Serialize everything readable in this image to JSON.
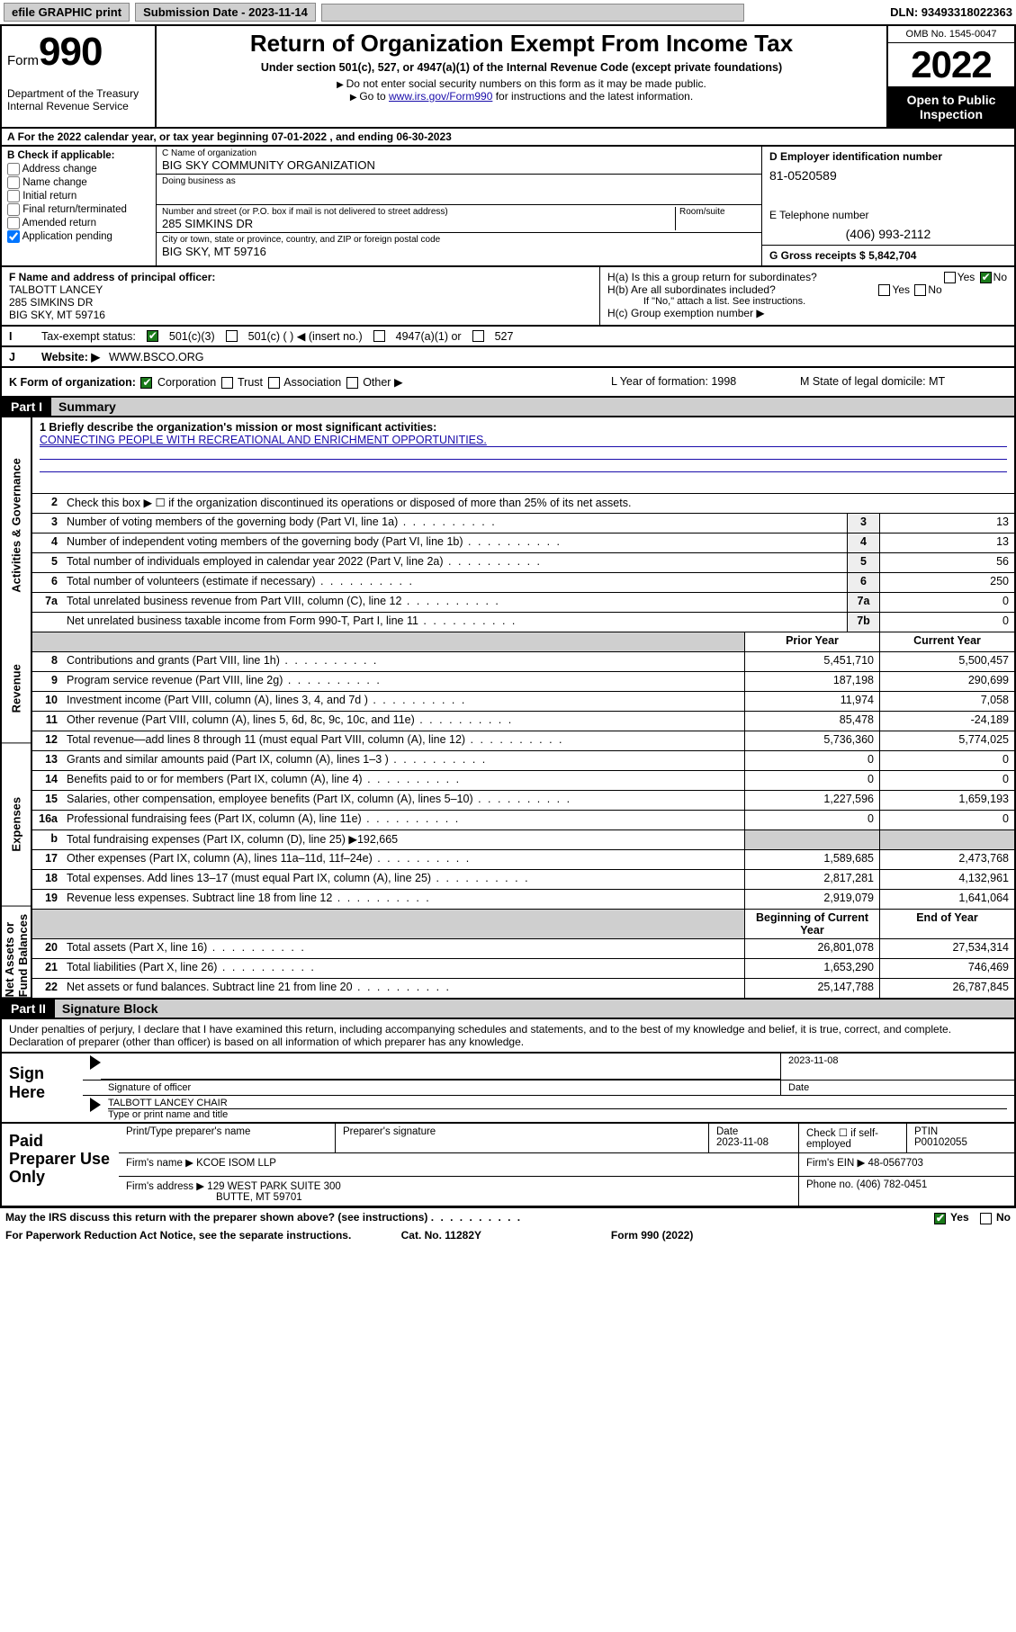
{
  "topbar": {
    "efile": "efile GRAPHIC print",
    "sub_label": "Submission Date - 2023-11-14",
    "dln": "DLN: 93493318022363"
  },
  "head": {
    "form_word": "Form",
    "form_num": "990",
    "title": "Return of Organization Exempt From Income Tax",
    "sub": "Under section 501(c), 527, or 4947(a)(1) of the Internal Revenue Code (except private foundations)",
    "note1": "Do not enter social security numbers on this form as it may be made public.",
    "note2_pre": "Go to ",
    "note2_link": "www.irs.gov/Form990",
    "note2_post": " for instructions and the latest information.",
    "dept": "Department of the Treasury\nInternal Revenue Service",
    "omb": "OMB No. 1545-0047",
    "year": "2022",
    "open": "Open to Public Inspection"
  },
  "period": "For the 2022 calendar year, or tax year beginning 07-01-2022   , and ending 06-30-2023",
  "B": {
    "hdr": "B Check if applicable:",
    "items": [
      "Address change",
      "Name change",
      "Initial return",
      "Final return/terminated",
      "Amended return",
      "Application pending"
    ]
  },
  "C": {
    "name_lab": "C Name of organization",
    "name": "BIG SKY COMMUNITY ORGANIZATION",
    "dba_lab": "Doing business as",
    "addr_lab": "Number and street (or P.O. box if mail is not delivered to street address)",
    "room_lab": "Room/suite",
    "addr": "285 SIMKINS DR",
    "city_lab": "City or town, state or province, country, and ZIP or foreign postal code",
    "city": "BIG SKY, MT  59716"
  },
  "D": {
    "lab": "D Employer identification number",
    "val": "81-0520589"
  },
  "E": {
    "lab": "E Telephone number",
    "val": "(406) 993-2112"
  },
  "G": {
    "lab": "G Gross receipts $",
    "val": "5,842,704"
  },
  "F": {
    "lab": "F  Name and address of principal officer:",
    "name": "TALBOTT LANCEY",
    "addr1": "285 SIMKINS DR",
    "addr2": "BIG SKY, MT  59716"
  },
  "H": {
    "a": "H(a)  Is this a group return for subordinates?",
    "b": "H(b)  Are all subordinates included?",
    "b_note": "If \"No,\" attach a list. See instructions.",
    "c": "H(c)  Group exemption number ▶"
  },
  "I": {
    "lab": "Tax-exempt status:",
    "opts": [
      "501(c)(3)",
      "501(c) (   ) ◀ (insert no.)",
      "4947(a)(1) or",
      "527"
    ]
  },
  "J": {
    "lab": "Website: ▶",
    "val": "WWW.BSCO.ORG"
  },
  "K": {
    "lab": "K Form of organization:",
    "opts": [
      "Corporation",
      "Trust",
      "Association",
      "Other ▶"
    ],
    "L": "L Year of formation: 1998",
    "M": "M State of legal domicile: MT"
  },
  "part1": {
    "hdr": "Part I",
    "title": "Summary"
  },
  "mission": {
    "q": "1     Briefly describe the organization's mission or most significant activities:",
    "a": "CONNECTING PEOPLE WITH RECREATIONAL AND ENRICHMENT OPPORTUNITIES."
  },
  "line2": "Check this box ▶ ☐  if the organization discontinued its operations or disposed of more than 25% of its net assets.",
  "govRows": [
    {
      "n": "3",
      "t": "Number of voting members of the governing body (Part VI, line 1a)",
      "b": "3",
      "v": "13"
    },
    {
      "n": "4",
      "t": "Number of independent voting members of the governing body (Part VI, line 1b)",
      "b": "4",
      "v": "13"
    },
    {
      "n": "5",
      "t": "Total number of individuals employed in calendar year 2022 (Part V, line 2a)",
      "b": "5",
      "v": "56"
    },
    {
      "n": "6",
      "t": "Total number of volunteers (estimate if necessary)",
      "b": "6",
      "v": "250"
    },
    {
      "n": "7a",
      "t": "Total unrelated business revenue from Part VIII, column (C), line 12",
      "b": "7a",
      "v": "0"
    },
    {
      "n": "",
      "t": "Net unrelated business taxable income from Form 990-T, Part I, line 11",
      "b": "7b",
      "v": "0"
    }
  ],
  "pyHdr": {
    "p": "Prior Year",
    "c": "Current Year"
  },
  "revRows": [
    {
      "n": "8",
      "t": "Contributions and grants (Part VIII, line 1h)",
      "p": "5,451,710",
      "c": "5,500,457"
    },
    {
      "n": "9",
      "t": "Program service revenue (Part VIII, line 2g)",
      "p": "187,198",
      "c": "290,699"
    },
    {
      "n": "10",
      "t": "Investment income (Part VIII, column (A), lines 3, 4, and 7d )",
      "p": "11,974",
      "c": "7,058"
    },
    {
      "n": "11",
      "t": "Other revenue (Part VIII, column (A), lines 5, 6d, 8c, 9c, 10c, and 11e)",
      "p": "85,478",
      "c": "-24,189"
    },
    {
      "n": "12",
      "t": "Total revenue—add lines 8 through 11 (must equal Part VIII, column (A), line 12)",
      "p": "5,736,360",
      "c": "5,774,025"
    }
  ],
  "expRows": [
    {
      "n": "13",
      "t": "Grants and similar amounts paid (Part IX, column (A), lines 1–3 )",
      "p": "0",
      "c": "0"
    },
    {
      "n": "14",
      "t": "Benefits paid to or for members (Part IX, column (A), line 4)",
      "p": "0",
      "c": "0"
    },
    {
      "n": "15",
      "t": "Salaries, other compensation, employee benefits (Part IX, column (A), lines 5–10)",
      "p": "1,227,596",
      "c": "1,659,193"
    },
    {
      "n": "16a",
      "t": "Professional fundraising fees (Part IX, column (A), line 11e)",
      "p": "0",
      "c": "0"
    },
    {
      "n": "b",
      "t": "Total fundraising expenses (Part IX, column (D), line 25) ▶192,665",
      "shade": true
    },
    {
      "n": "17",
      "t": "Other expenses (Part IX, column (A), lines 11a–11d, 11f–24e)",
      "p": "1,589,685",
      "c": "2,473,768"
    },
    {
      "n": "18",
      "t": "Total expenses. Add lines 13–17 (must equal Part IX, column (A), line 25)",
      "p": "2,817,281",
      "c": "4,132,961"
    },
    {
      "n": "19",
      "t": "Revenue less expenses. Subtract line 18 from line 12",
      "p": "2,919,079",
      "c": "1,641,064"
    }
  ],
  "naHdr": {
    "p": "Beginning of Current Year",
    "c": "End of Year"
  },
  "naRows": [
    {
      "n": "20",
      "t": "Total assets (Part X, line 16)",
      "p": "26,801,078",
      "c": "27,534,314"
    },
    {
      "n": "21",
      "t": "Total liabilities (Part X, line 26)",
      "p": "1,653,290",
      "c": "746,469"
    },
    {
      "n": "22",
      "t": "Net assets or fund balances. Subtract line 21 from line 20",
      "p": "25,147,788",
      "c": "26,787,845"
    }
  ],
  "sideTabs": [
    "Activities & Governance",
    "Revenue",
    "Expenses",
    "Net Assets or Fund Balances"
  ],
  "part2": {
    "hdr": "Part II",
    "title": "Signature Block"
  },
  "sigIntro": "Under penalties of perjury, I declare that I have examined this return, including accompanying schedules and statements, and to the best of my knowledge and belief, it is true, correct, and complete. Declaration of preparer (other than officer) is based on all information of which preparer has any knowledge.",
  "sign": {
    "here": "Sign Here",
    "sig_lab": "Signature of officer",
    "date_lab": "Date",
    "date": "2023-11-08",
    "name": "TALBOTT LANCEY CHAIR",
    "name_lab": "Type or print name and title"
  },
  "paid": {
    "here": "Paid Preparer Use Only",
    "h1": "Print/Type preparer's name",
    "h2": "Preparer's signature",
    "h3": "Date",
    "date": "2023-11-08",
    "h4": "Check ☐ if self-employed",
    "h5": "PTIN",
    "ptin": "P00102055",
    "firm_lab": "Firm's name    ▶",
    "firm": "KCOE ISOM LLP",
    "ein_lab": "Firm's EIN ▶",
    "ein": "48-0567703",
    "addr_lab": "Firm's address ▶",
    "addr1": "129 WEST PARK SUITE 300",
    "addr2": "BUTTE, MT  59701",
    "ph_lab": "Phone no.",
    "ph": "(406) 782-0451"
  },
  "footer": {
    "q": "May the IRS discuss this return with the preparer shown above? (see instructions)",
    "pra": "For Paperwork Reduction Act Notice, see the separate instructions.",
    "cat": "Cat. No. 11282Y",
    "form": "Form 990 (2022)"
  }
}
